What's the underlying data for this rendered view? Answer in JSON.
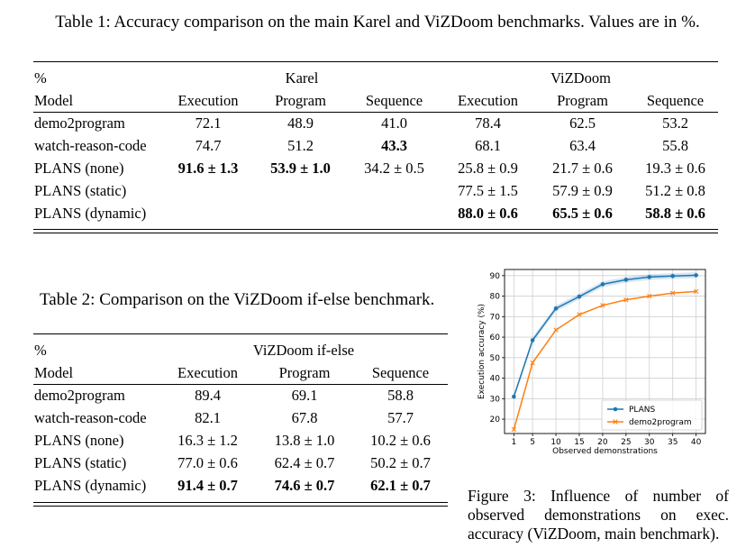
{
  "table1": {
    "caption": "Table 1: Accuracy comparison on the main Karel and ViZDoom benchmarks. Values are in %.",
    "percent": "%",
    "model_header": "Model",
    "group_karel": "Karel",
    "group_vizdoom": "ViZDoom",
    "subheaders": [
      "Execution",
      "Program",
      "Sequence",
      "Execution",
      "Program",
      "Sequence"
    ],
    "rows": [
      {
        "model": "demo2program",
        "cells": [
          "72.1",
          "48.9",
          "41.0",
          "78.4",
          "62.5",
          "53.2"
        ],
        "bold": [
          false,
          false,
          false,
          false,
          false,
          false
        ]
      },
      {
        "model": "watch-reason-code",
        "cells": [
          "74.7",
          "51.2",
          "43.3",
          "68.1",
          "63.4",
          "55.8"
        ],
        "bold": [
          false,
          false,
          true,
          false,
          false,
          false
        ]
      },
      {
        "model": "PLANS (none)",
        "cells": [
          "91.6 ± 1.3",
          "53.9 ± 1.0",
          "34.2 ± 0.5",
          "25.8 ± 0.9",
          "21.7 ± 0.6",
          "19.3 ± 0.6"
        ],
        "bold": [
          true,
          true,
          false,
          false,
          false,
          false
        ]
      },
      {
        "model": "PLANS (static)",
        "cells": [
          "",
          "",
          "",
          "77.5 ± 1.5",
          "57.9 ± 0.9",
          "51.2 ± 0.8"
        ],
        "bold": [
          false,
          false,
          false,
          false,
          false,
          false
        ]
      },
      {
        "model": "PLANS (dynamic)",
        "cells": [
          "",
          "",
          "",
          "88.0 ± 0.6",
          "65.5 ± 0.6",
          "58.8 ± 0.6"
        ],
        "bold": [
          false,
          false,
          false,
          true,
          true,
          true
        ]
      }
    ]
  },
  "table2": {
    "caption": "Table 2: Comparison on the ViZDoom if-else benchmark.",
    "percent": "%",
    "model_header": "Model",
    "group": "ViZDoom if-else",
    "subheaders": [
      "Execution",
      "Program",
      "Sequence"
    ],
    "rows": [
      {
        "model": "demo2program",
        "cells": [
          "89.4",
          "69.1",
          "58.8"
        ],
        "bold": [
          false,
          false,
          false
        ]
      },
      {
        "model": "watch-reason-code",
        "cells": [
          "82.1",
          "67.8",
          "57.7"
        ],
        "bold": [
          false,
          false,
          false
        ]
      },
      {
        "model": "PLANS (none)",
        "cells": [
          "16.3 ± 1.2",
          "13.8 ± 1.0",
          "10.2 ± 0.6"
        ],
        "bold": [
          false,
          false,
          false
        ]
      },
      {
        "model": "PLANS (static)",
        "cells": [
          "77.0 ± 0.6",
          "62.4 ± 0.7",
          "50.2 ± 0.7"
        ],
        "bold": [
          false,
          false,
          false
        ]
      },
      {
        "model": "PLANS (dynamic)",
        "cells": [
          "91.4 ± 0.7",
          "74.6 ± 0.7",
          "62.1 ± 0.7"
        ],
        "bold": [
          true,
          true,
          true
        ]
      }
    ]
  },
  "figure3": {
    "caption": "Figure 3: Influence of number of observed demonstrations on exec. accuracy (ViZDoom, main benchmark)."
  },
  "chart_data": {
    "type": "line",
    "title": "",
    "xlabel": "Observed demonstrations",
    "ylabel": "Execution accuracy (%)",
    "x": [
      1,
      5,
      10,
      15,
      20,
      25,
      30,
      35,
      40
    ],
    "xticks": [
      1,
      5,
      10,
      15,
      20,
      25,
      30,
      35,
      40
    ],
    "yticks": [
      20,
      30,
      40,
      50,
      60,
      70,
      80,
      90
    ],
    "xlim": [
      -1,
      42
    ],
    "ylim": [
      13,
      93
    ],
    "grid": true,
    "legend_position": "lower-right",
    "series": [
      {
        "name": "PLANS",
        "color": "#1f77b4",
        "marker": "circle",
        "values": [
          31.0,
          58.5,
          74.0,
          79.8,
          85.8,
          88.0,
          89.3,
          89.8,
          90.2
        ]
      },
      {
        "name": "demo2program",
        "color": "#ff7f0e",
        "marker": "x",
        "values": [
          15.0,
          47.5,
          63.5,
          71.0,
          75.5,
          78.2,
          80.0,
          81.5,
          82.3
        ]
      }
    ]
  }
}
